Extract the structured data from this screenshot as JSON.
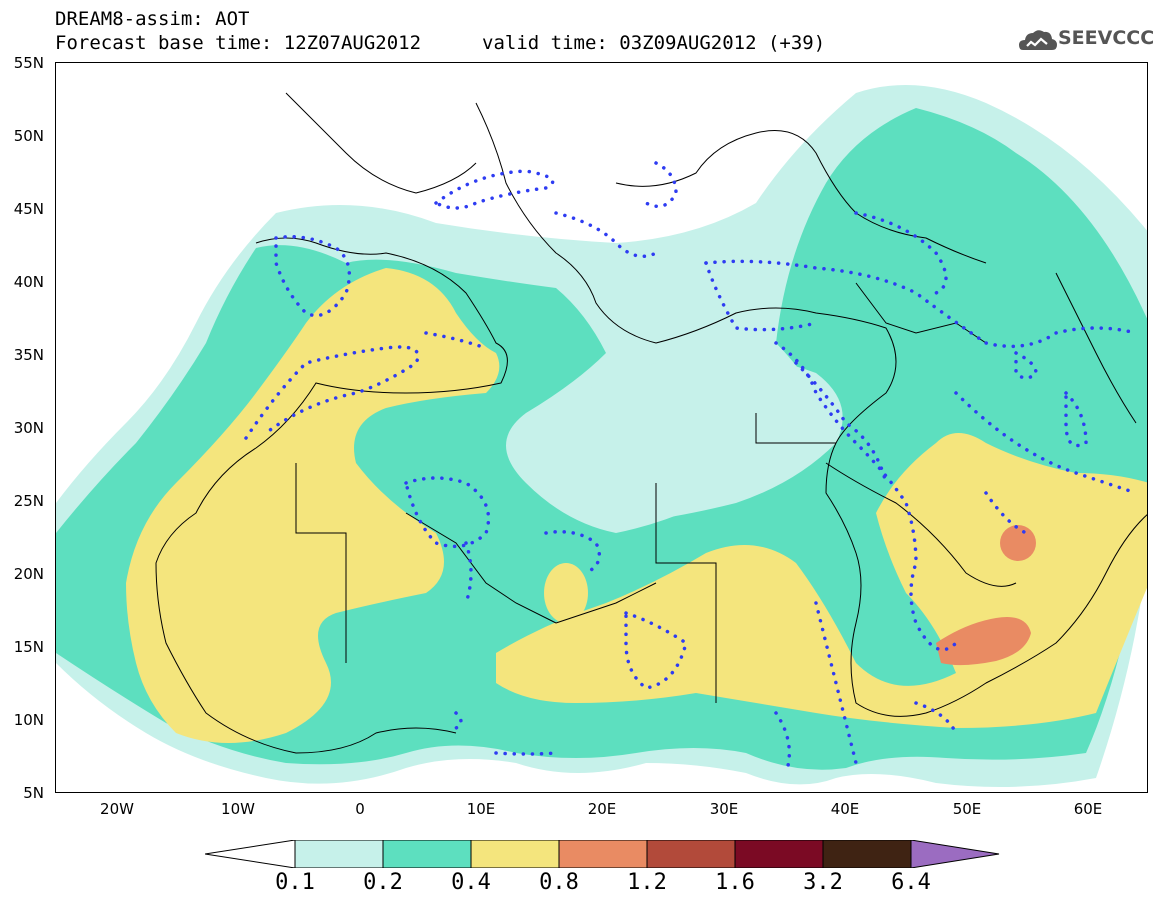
{
  "header": {
    "title": "DREAM8-assim: AOT",
    "base_time": "Forecast base time: 12Z07AUG2012",
    "valid_time": "valid time: 03Z09AUG2012 (+39)",
    "logo_text": "SEEVCCC"
  },
  "map": {
    "lon_range": [
      -25,
      65
    ],
    "lat_range": [
      5,
      55
    ],
    "lat_ticks": [
      "55N",
      "50N",
      "45N",
      "40N",
      "35N",
      "30N",
      "25N",
      "20N",
      "15N",
      "10N",
      "5N"
    ],
    "lon_ticks": [
      "20W",
      "10W",
      "0",
      "10E",
      "20E",
      "30E",
      "40E",
      "50E",
      "60E"
    ]
  },
  "colorbar": {
    "labels": [
      "0.1",
      "0.2",
      "0.4",
      "0.8",
      "1.2",
      "1.6",
      "3.2",
      "6.4"
    ],
    "colors": [
      "#ffffff",
      "#c6f1ea",
      "#5ddfbf",
      "#f4e57d",
      "#e98b63",
      "#b24a3a",
      "#7b0a24",
      "#3f2313",
      "#9b6cc1"
    ]
  },
  "colors": {
    "level_01": "#c6f1ea",
    "level_02": "#5ddfbf",
    "level_04": "#f4e57d",
    "level_08": "#e98b63",
    "contour_dots": "#2e3cf2",
    "coastline": "#000000"
  }
}
